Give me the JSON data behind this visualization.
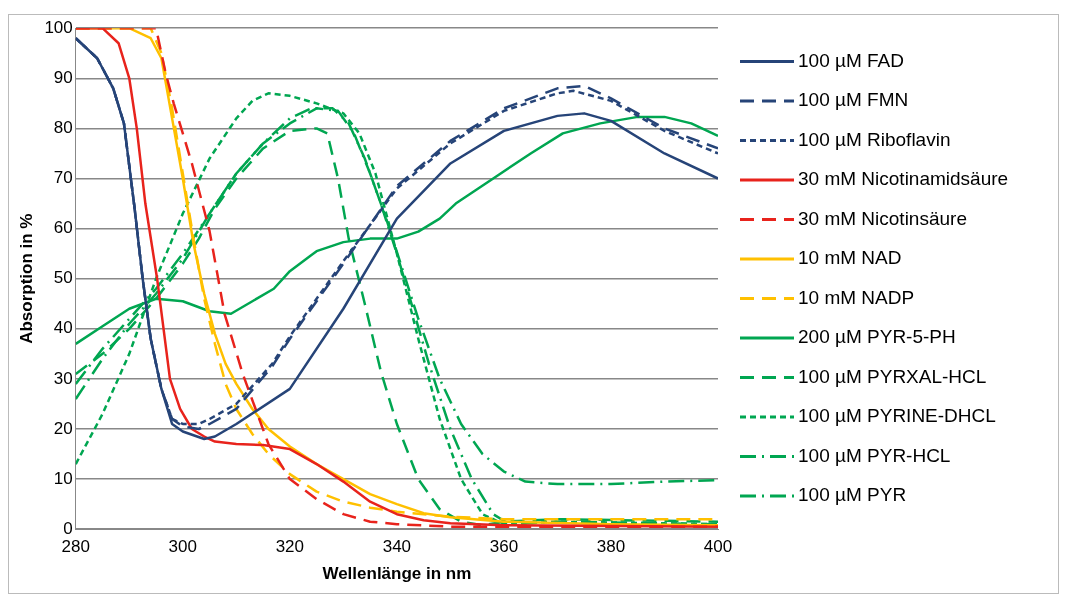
{
  "chart_data": {
    "type": "line",
    "xlabel": "Wellenlänge in nm",
    "ylabel": "Absorption in %",
    "xlim": [
      280,
      400
    ],
    "xticks": [
      280,
      300,
      320,
      340,
      360,
      380,
      400
    ],
    "ylim": [
      0,
      100
    ],
    "yticks": [
      0,
      10,
      20,
      30,
      40,
      50,
      60,
      70,
      80,
      90,
      100
    ],
    "grid": "y",
    "legend": "right",
    "marker": "none",
    "series": [
      {
        "name": "100 µM FAD",
        "color": "#264478",
        "line_style": "solid",
        "x": [
          280,
          284,
          287,
          289,
          291,
          292.5,
          294,
          296,
          298,
          300,
          304,
          306,
          310,
          320,
          330,
          340,
          350,
          360,
          370,
          375,
          380,
          390,
          400
        ],
        "values": [
          98,
          94,
          88,
          81,
          64,
          50,
          38,
          28,
          21,
          19.5,
          18,
          18.5,
          21,
          28,
          44,
          62,
          73,
          79.5,
          82.5,
          83,
          81.5,
          75,
          70
        ]
      },
      {
        "name": "100 µM FMN",
        "color": "#264478",
        "line_style": "dashed",
        "x": [
          280,
          284,
          287,
          289,
          291,
          292.5,
          294,
          296,
          298,
          300,
          303,
          305,
          310,
          316.7,
          320,
          330,
          340,
          350,
          360,
          370,
          375,
          380,
          390,
          400
        ],
        "values": [
          98,
          94,
          88,
          81,
          64,
          50,
          38,
          28,
          22,
          20.5,
          20,
          21,
          24,
          32.5,
          38,
          53,
          68.5,
          77.5,
          84,
          88,
          88.5,
          86,
          80,
          76
        ]
      },
      {
        "name": "100 µM Riboflavin",
        "color": "#264478",
        "line_style": "dotted",
        "x": [
          280,
          284,
          287,
          289,
          291,
          292.5,
          294,
          296,
          298,
          300,
          303,
          305,
          310,
          316.7,
          320,
          330,
          340,
          350,
          360,
          370,
          373,
          380,
          390,
          400
        ],
        "values": [
          98,
          94,
          88,
          81,
          64,
          50,
          38,
          28,
          22,
          21,
          21,
          22,
          25,
          33,
          38.5,
          53.5,
          68,
          77,
          83.5,
          87,
          87.5,
          85.5,
          79.5,
          75
        ]
      },
      {
        "name": "30 mM Nicotinamidsäure",
        "color": "#e8231c",
        "line_style": "solid",
        "x": [
          280,
          285,
          288,
          290,
          291.4,
          293,
          295.2,
          297.6,
          299.5,
          301.7,
          304,
          306,
          310,
          315,
          320,
          325,
          330,
          335,
          340,
          345,
          350,
          360,
          400
        ],
        "values": [
          100,
          100,
          97,
          90,
          80,
          65,
          50,
          30,
          24,
          20,
          18.5,
          17.5,
          17,
          16.8,
          16,
          13,
          9.5,
          5.5,
          3,
          1.8,
          1.2,
          0.8,
          0.5
        ]
      },
      {
        "name": "30 mM Nicotinsäure",
        "color": "#e8231c",
        "line_style": "dashed",
        "x": [
          280,
          295,
          296.8,
          298.3,
          301.7,
          305,
          307.8,
          311.2,
          316,
          320,
          325,
          330,
          335,
          340,
          350,
          400
        ],
        "values": [
          100,
          100,
          91,
          85,
          73,
          59.5,
          43,
          31,
          17,
          10,
          6,
          3,
          1.5,
          1,
          0.5,
          0.5
        ]
      },
      {
        "name": "10 mM NAD",
        "color": "#ffc000",
        "line_style": "solid",
        "x": [
          280,
          290,
          294,
          296,
          298,
          300,
          302,
          304,
          306,
          308,
          310,
          313,
          316,
          320,
          325,
          330,
          335,
          340,
          345,
          350,
          360,
          380,
          400
        ],
        "values": [
          100,
          100,
          98,
          94,
          82,
          70,
          57,
          47,
          39,
          33,
          29,
          24,
          20,
          16.5,
          13,
          10,
          7,
          5,
          3.2,
          2.4,
          1.5,
          1,
          0.8
        ]
      },
      {
        "name": "10 mM NADP",
        "color": "#ffc000",
        "line_style": "dashed",
        "x": [
          280,
          294,
          296,
          298,
          300,
          302,
          304,
          306,
          308,
          310,
          313,
          316,
          320,
          325,
          330,
          335,
          340,
          350,
          360,
          400
        ],
        "values": [
          100,
          100,
          95,
          84,
          71,
          58,
          46,
          37,
          29,
          24,
          19,
          15,
          11,
          7.5,
          5.5,
          4.3,
          3.5,
          2.5,
          2,
          2
        ]
      },
      {
        "name": "200 µM PYR-5-PH",
        "color": "#00a651",
        "line_style": "solid",
        "x": [
          280,
          285,
          290,
          295,
          300,
          305,
          309,
          313,
          317,
          320,
          325,
          330,
          335,
          340,
          344,
          348,
          351,
          358,
          365,
          371,
          378,
          385,
          390,
          395,
          400
        ],
        "values": [
          37,
          40.5,
          44,
          46,
          45.5,
          43.5,
          43,
          45.5,
          48,
          51.5,
          55.5,
          57.3,
          58,
          58,
          59.4,
          62,
          65,
          70,
          75,
          79,
          81,
          82.3,
          82.3,
          81,
          78.5
        ]
      },
      {
        "name": "100 µM PYRXAL-HCL",
        "color": "#00a651",
        "line_style": "dashed",
        "x": [
          280,
          285,
          290,
          295,
          300,
          303,
          306,
          310,
          315,
          320,
          325,
          327,
          329,
          331,
          334,
          337,
          340,
          344,
          348,
          352,
          356,
          360,
          370,
          400
        ],
        "values": [
          31,
          35,
          40,
          46,
          53,
          58,
          64,
          70,
          76,
          79.5,
          80,
          79,
          70,
          58,
          45,
          31.5,
          21,
          10,
          4,
          1.5,
          0.8,
          1.5,
          2,
          1.5
        ]
      },
      {
        "name": "100 µM PYRINE-DHCL",
        "color": "#00a651",
        "line_style": "dotted",
        "x": [
          280,
          285,
          290,
          295,
          300,
          305,
          310,
          313,
          316,
          320,
          325,
          330,
          333,
          336,
          340,
          344,
          348,
          352,
          356,
          360,
          370,
          400
        ],
        "values": [
          13,
          23,
          35,
          50,
          63,
          74,
          82,
          85.5,
          87,
          86.5,
          85,
          83,
          79,
          71,
          55,
          38,
          22,
          10,
          3,
          1,
          1.5,
          1
        ]
      },
      {
        "name": "100 µM PYR-HCL",
        "color": "#00a651",
        "line_style": "dashdot",
        "x": [
          280,
          285,
          290,
          295,
          300,
          305,
          310,
          315,
          320,
          324,
          328,
          331,
          334,
          337,
          340,
          343,
          346,
          350,
          354,
          358,
          361,
          370,
          400
        ],
        "values": [
          26,
          34,
          41,
          47,
          54,
          63,
          71,
          77,
          82,
          84,
          84,
          81,
          74,
          65,
          55,
          44,
          33,
          20,
          10,
          3,
          1,
          1.5,
          1
        ]
      },
      {
        "name": "100 µM PYR",
        "color": "#00a651",
        "line_style": "dashdot",
        "x": [
          280,
          285,
          290,
          295,
          300,
          305,
          310,
          315,
          320,
          325,
          329,
          332,
          335,
          338,
          341,
          344,
          348,
          352,
          356,
          360,
          364,
          370,
          380,
          390,
          400
        ],
        "values": [
          29,
          36,
          42,
          48,
          55,
          63,
          71,
          77,
          81,
          84,
          83.5,
          79,
          71,
          62,
          52,
          42,
          30,
          21,
          15,
          11.5,
          9.5,
          9,
          9,
          9.5,
          9.8
        ]
      }
    ]
  }
}
